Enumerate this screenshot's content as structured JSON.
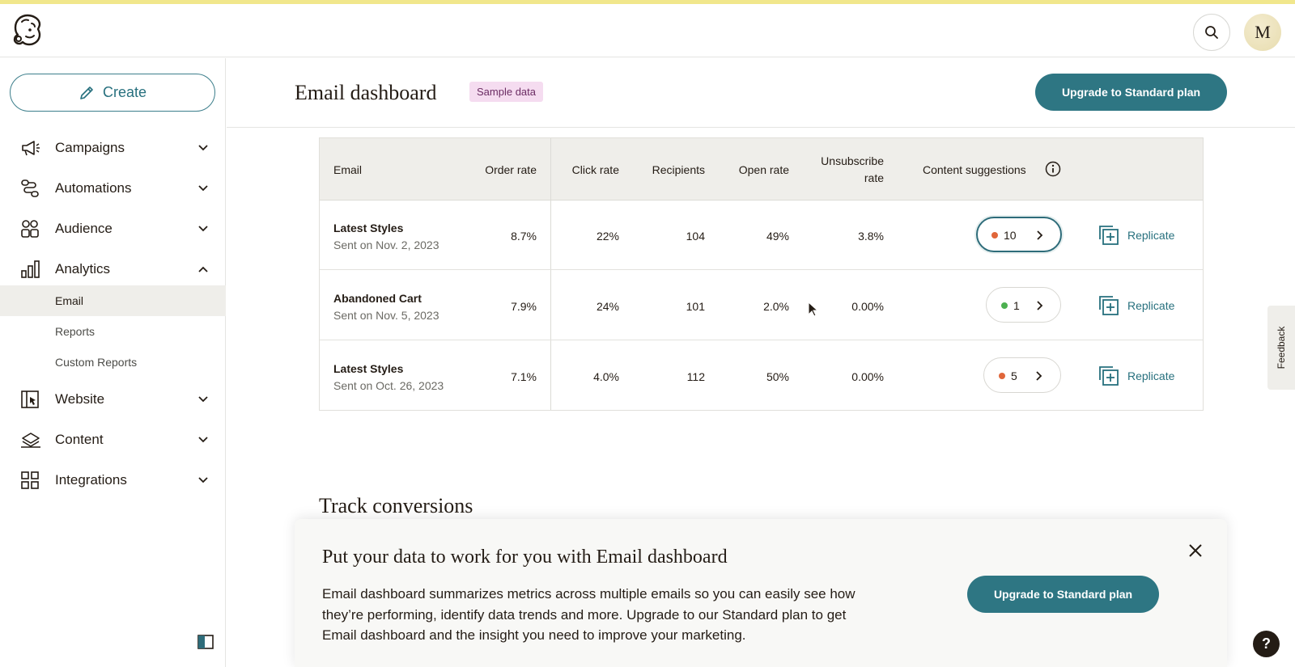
{
  "topbar": {
    "avatar_initial": "M"
  },
  "sidebar": {
    "create_label": "Create",
    "items": [
      {
        "label": "Campaigns",
        "icon": "megaphone-icon",
        "expanded": false
      },
      {
        "label": "Automations",
        "icon": "automation-flow-icon",
        "expanded": false
      },
      {
        "label": "Audience",
        "icon": "audience-icon",
        "expanded": false
      },
      {
        "label": "Analytics",
        "icon": "bar-chart-icon",
        "expanded": true
      },
      {
        "label": "Website",
        "icon": "website-icon",
        "expanded": false
      },
      {
        "label": "Content",
        "icon": "content-icon",
        "expanded": false
      },
      {
        "label": "Integrations",
        "icon": "integrations-grid-icon",
        "expanded": false
      }
    ],
    "analytics_sub": [
      {
        "label": "Email",
        "active": true
      },
      {
        "label": "Reports",
        "active": false
      },
      {
        "label": "Custom Reports",
        "active": false
      }
    ]
  },
  "header": {
    "title": "Email dashboard",
    "badge": "Sample data",
    "upgrade_label": "Upgrade to Standard plan"
  },
  "table": {
    "columns": {
      "email": "Email",
      "order_rate": "Order rate",
      "click_rate": "Click rate",
      "recipients": "Recipients",
      "open_rate": "Open rate",
      "unsubscribe_line1": "Unsubscribe",
      "unsubscribe_line2": "rate",
      "content_suggestions": "Content suggestions"
    },
    "rows": [
      {
        "name": "Latest Styles",
        "sent": "Sent on Nov. 2, 2023",
        "order_rate": "8.7%",
        "click_rate": "22%",
        "recipients": "104",
        "open_rate": "49%",
        "unsubscribe_rate": "3.8%",
        "suggestions": "10",
        "dot_color": "#e0663a",
        "replicate": "Replicate"
      },
      {
        "name": "Abandoned Cart",
        "sent": "Sent on Nov. 5, 2023",
        "order_rate": "7.9%",
        "click_rate": "24%",
        "recipients": "101",
        "open_rate": "2.0%",
        "unsubscribe_rate": "0.00%",
        "suggestions": "1",
        "dot_color": "#4cb050",
        "replicate": "Replicate"
      },
      {
        "name": "Latest Styles",
        "sent": "Sent on Oct. 26, 2023",
        "order_rate": "7.1%",
        "click_rate": "4.0%",
        "recipients": "112",
        "open_rate": "50%",
        "unsubscribe_rate": "0.00%",
        "suggestions": "5",
        "dot_color": "#e0663a",
        "replicate": "Replicate"
      }
    ]
  },
  "track": {
    "title": "Track conversions"
  },
  "promo": {
    "title": "Put your data to work for you with Email dashboard",
    "body": "Email dashboard summarizes metrics across multiple emails so you can easily see how they’re performing, identify data trends and more. Upgrade to our Standard plan to get Email dashboard and the insight you need to improve your marketing.",
    "upgrade_label": "Upgrade to Standard plan"
  },
  "feedback_label": "Feedback",
  "help_label": "?",
  "colors": {
    "accent": "#2e7683",
    "badge_bg": "#f5dcf0",
    "active_nav_bg": "#efeeea"
  }
}
